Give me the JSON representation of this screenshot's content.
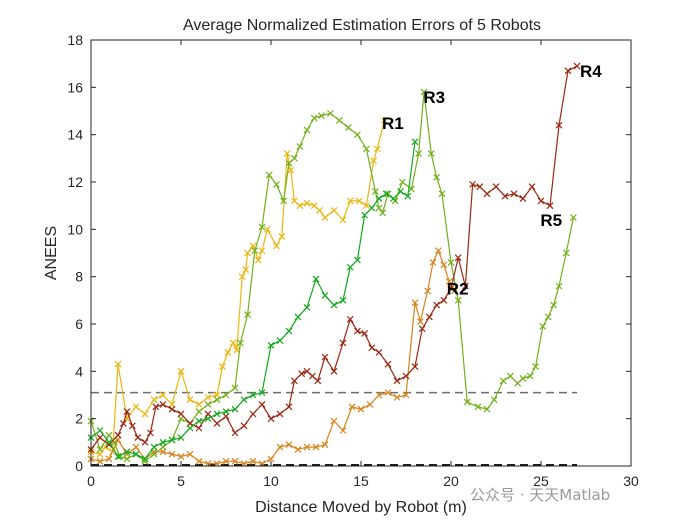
{
  "chart_data": {
    "type": "line",
    "title": "Average Normalized Estimation Errors of 5 Robots",
    "xlabel": "Distance Moved by Robot (m)",
    "ylabel": "ANEES",
    "xlim": [
      0,
      30
    ],
    "ylim": [
      0,
      18
    ],
    "xticks": [
      0,
      5,
      10,
      15,
      20,
      25,
      30
    ],
    "yticks": [
      0,
      2,
      4,
      6,
      8,
      10,
      12,
      14,
      16,
      18
    ],
    "grid": false,
    "reference_lines": [
      {
        "name": "upper-bound",
        "y": 3.1,
        "x": [
          0,
          27
        ],
        "style": "dashed",
        "color": "#6e6e6e"
      },
      {
        "name": "lower-bound",
        "y": 0.05,
        "x": [
          0,
          27
        ],
        "style": "dashed",
        "color": "#000000"
      }
    ],
    "series": [
      {
        "name": "R1",
        "color": "#ebb611",
        "x": [
          0,
          0.5,
          0.8,
          1.2,
          1.5,
          2.0,
          2.5,
          3.0,
          3.5,
          4.0,
          4.5,
          5.0,
          5.5,
          6.0,
          6.5,
          7.0,
          7.3,
          7.6,
          7.9,
          8.1,
          8.4,
          8.6,
          8.7,
          9.0,
          9.3,
          9.5,
          9.8,
          10.3,
          10.6,
          10.9,
          11.1,
          11.3,
          11.6,
          12.0,
          12.4,
          12.7,
          13.0,
          13.5,
          14.0,
          14.4,
          14.9,
          15.3,
          15.7,
          15.9,
          16.3
        ],
        "y": [
          0.6,
          0.5,
          0.8,
          0.6,
          4.3,
          2.0,
          2.5,
          2.2,
          2.8,
          3.0,
          2.6,
          4.0,
          2.8,
          2.6,
          2.9,
          3.0,
          4.2,
          4.8,
          5.2,
          4.9,
          8.0,
          8.3,
          9.0,
          9.3,
          8.7,
          9.1,
          10.0,
          9.3,
          9.7,
          13.2,
          12.5,
          11.2,
          11.0,
          11.1,
          11.0,
          10.8,
          10.5,
          10.8,
          10.4,
          11.2,
          11.2,
          11.0,
          12.9,
          13.4,
          14.6
        ]
      },
      {
        "name": "R2",
        "color": "#d9821b",
        "x": [
          0,
          0.5,
          1.0,
          1.5,
          2.0,
          2.5,
          3.0,
          3.5,
          4.0,
          4.5,
          5.0,
          5.5,
          6.0,
          6.5,
          7.0,
          7.5,
          8.0,
          8.5,
          9.0,
          9.5,
          10.0,
          10.5,
          11.0,
          11.5,
          12.0,
          12.5,
          13.0,
          13.5,
          14.0,
          14.5,
          15.0,
          15.5,
          16.0,
          16.5,
          17.0,
          17.5,
          18.0,
          18.3,
          18.7,
          19.0,
          19.3,
          19.6,
          19.9,
          20.2
        ],
        "y": [
          0.3,
          0.2,
          0.3,
          1.1,
          0.5,
          0.8,
          0.3,
          0.6,
          0.6,
          0.5,
          0.4,
          0.5,
          0.2,
          0.1,
          0.1,
          0.2,
          0.2,
          0.1,
          0.2,
          0.1,
          0.3,
          0.8,
          0.9,
          0.7,
          0.8,
          0.8,
          0.9,
          1.9,
          1.5,
          2.5,
          2.4,
          2.6,
          3.0,
          3.1,
          2.9,
          3.0,
          6.9,
          6.1,
          7.4,
          8.6,
          9.1,
          8.5,
          7.8,
          7.4
        ]
      },
      {
        "name": "R3",
        "color": "#72b01a",
        "x": [
          0,
          0.5,
          1.0,
          1.3,
          1.6,
          2.0,
          2.5,
          3.0,
          3.5,
          4.0,
          4.5,
          5.0,
          5.5,
          6.0,
          6.5,
          7.0,
          7.5,
          8.0,
          8.3,
          8.7,
          9.1,
          9.5,
          9.9,
          10.3,
          10.7,
          11.0,
          11.3,
          11.6,
          12.0,
          12.4,
          12.8,
          13.3,
          13.8,
          14.3,
          14.8,
          15.3,
          15.8,
          16.0,
          16.2,
          16.5,
          16.9,
          17.3,
          17.8,
          18.2,
          18.5,
          18.9,
          19.2,
          19.5,
          20.0,
          20.4,
          20.9,
          21.5,
          22.0,
          22.4,
          22.9,
          23.3,
          23.7,
          24.0,
          24.4,
          24.7,
          25.1,
          25.4,
          25.7,
          26.0,
          26.4,
          26.8
        ],
        "y": [
          1.9,
          0.7,
          1.3,
          1.0,
          0.4,
          0.3,
          0.5,
          0.2,
          0.5,
          0.8,
          1.1,
          2.0,
          1.8,
          2.3,
          2.6,
          2.8,
          3.0,
          3.3,
          5.2,
          6.4,
          9.1,
          10.1,
          12.3,
          11.9,
          11.2,
          12.8,
          13.0,
          13.5,
          14.2,
          14.7,
          14.8,
          14.9,
          14.6,
          14.3,
          14.0,
          13.4,
          11.6,
          10.9,
          10.7,
          11.5,
          11.2,
          12.0,
          11.7,
          13.2,
          15.8,
          13.2,
          12.2,
          11.5,
          8.6,
          7.0,
          2.7,
          2.5,
          2.4,
          2.8,
          3.6,
          3.8,
          3.5,
          3.7,
          3.8,
          4.2,
          5.9,
          6.3,
          6.8,
          7.6,
          9.0,
          10.5
        ]
      },
      {
        "name": "R4",
        "color": "#9b2712",
        "x": [
          0,
          0.5,
          1.0,
          1.5,
          1.8,
          2.0,
          2.3,
          2.6,
          3.0,
          3.3,
          3.6,
          4.0,
          4.5,
          5.0,
          5.5,
          6.0,
          6.5,
          7.0,
          7.5,
          8.0,
          8.5,
          9.0,
          9.5,
          10.0,
          10.5,
          11.0,
          11.3,
          11.7,
          12.0,
          12.3,
          12.6,
          13.0,
          13.5,
          14.0,
          14.4,
          14.8,
          15.2,
          15.6,
          16.0,
          16.5,
          17.0,
          17.5,
          18.0,
          18.4,
          18.8,
          19.2,
          19.6,
          20.0,
          20.4,
          20.8,
          21.2,
          21.6,
          22.0,
          22.5,
          23.0,
          23.5,
          24.0,
          24.5,
          25.0,
          25.5,
          26.0,
          26.5,
          27.0
        ],
        "y": [
          0.7,
          1.2,
          0.9,
          1.3,
          1.8,
          2.3,
          1.7,
          1.2,
          1.0,
          1.4,
          2.5,
          2.6,
          2.4,
          2.2,
          1.8,
          1.6,
          2.2,
          1.8,
          2.1,
          1.4,
          1.7,
          2.2,
          2.6,
          2.0,
          2.2,
          2.5,
          3.6,
          3.9,
          4.0,
          3.8,
          3.6,
          4.6,
          4.0,
          5.2,
          6.2,
          5.7,
          5.6,
          5.0,
          4.8,
          4.3,
          3.6,
          3.8,
          4.2,
          5.8,
          6.3,
          6.8,
          7.0,
          7.5,
          8.8,
          7.6,
          11.9,
          11.8,
          11.5,
          11.8,
          11.4,
          11.5,
          11.3,
          11.8,
          11.2,
          11.0,
          14.4,
          16.7,
          16.9
        ]
      },
      {
        "name": "R5",
        "color": "#14a91d",
        "x": [
          0,
          0.5,
          1.0,
          1.5,
          2.0,
          2.5,
          3.0,
          3.5,
          4.0,
          4.5,
          5.0,
          5.5,
          6.0,
          6.5,
          7.0,
          7.5,
          8.0,
          8.5,
          9.0,
          9.5,
          10.0,
          10.5,
          11.0,
          11.5,
          12.0,
          12.5,
          13.0,
          13.5,
          14.0,
          14.4,
          14.8,
          15.2,
          15.6,
          16.0,
          16.4,
          16.8,
          17.2,
          17.6,
          18.0
        ],
        "y": [
          1.2,
          1.5,
          1.0,
          0.4,
          0.6,
          0.5,
          0.3,
          0.8,
          1.0,
          1.1,
          1.2,
          1.6,
          1.9,
          2.0,
          2.2,
          2.3,
          2.4,
          2.8,
          3.0,
          3.1,
          5.1,
          5.3,
          5.7,
          6.3,
          6.7,
          7.9,
          7.2,
          6.8,
          7.0,
          8.4,
          8.7,
          10.6,
          10.9,
          11.3,
          11.5,
          11.3,
          11.6,
          11.4,
          13.7
        ]
      }
    ],
    "annotations": [
      {
        "text": "R1",
        "x": 16.0,
        "y": 14.5
      },
      {
        "text": "R3",
        "x": 18.3,
        "y": 15.6
      },
      {
        "text": "R4",
        "x": 27.0,
        "y": 16.7
      },
      {
        "text": "R5",
        "x": 24.8,
        "y": 10.4
      },
      {
        "text": "R2",
        "x": 19.6,
        "y": 7.5
      }
    ]
  },
  "watermark": {
    "text": "公众号 · 天天Matlab"
  }
}
